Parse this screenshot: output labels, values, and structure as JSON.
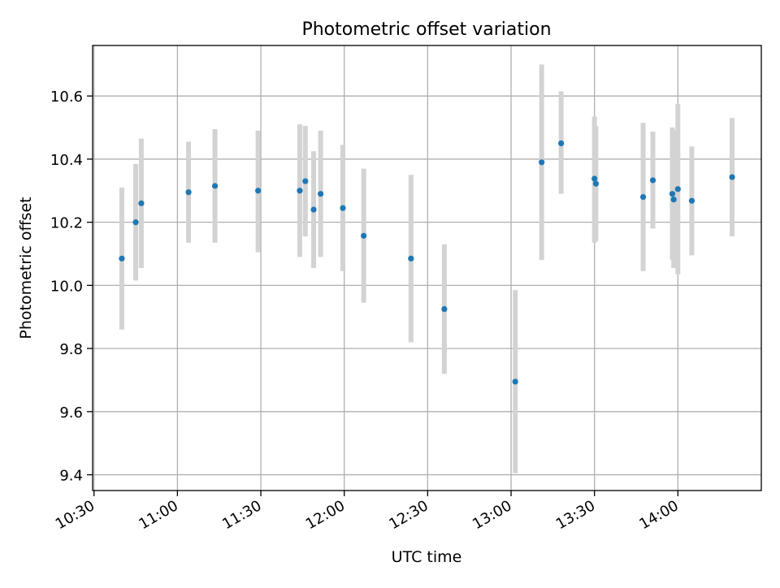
{
  "chart_data": {
    "type": "scatter",
    "title": "Photometric offset variation",
    "xlabel": "UTC time",
    "ylabel": "Photometric offset",
    "x_ticks": [
      "10:30",
      "11:00",
      "11:30",
      "12:00",
      "12:30",
      "13:00",
      "13:30",
      "14:00"
    ],
    "y_ticks": [
      "9.4",
      "9.6",
      "9.8",
      "10.0",
      "10.2",
      "10.4",
      "10.6"
    ],
    "xlim": [
      "10:29:30",
      "14:30:00"
    ],
    "ylim": [
      9.35,
      10.76
    ],
    "grid": true,
    "colors": {
      "point": "#1f77b4",
      "errorbar": "#d3d3d3",
      "grid": "#b0b0b0"
    },
    "points": [
      {
        "x": "10:40:00",
        "y": 10.085,
        "lo": 9.86,
        "hi": 10.31
      },
      {
        "x": "10:45:00",
        "y": 10.2,
        "lo": 10.015,
        "hi": 10.385
      },
      {
        "x": "10:47:00",
        "y": 10.26,
        "lo": 10.055,
        "hi": 10.465
      },
      {
        "x": "11:04:00",
        "y": 10.295,
        "lo": 10.135,
        "hi": 10.455
      },
      {
        "x": "11:13:30",
        "y": 10.315,
        "lo": 10.135,
        "hi": 10.495
      },
      {
        "x": "11:29:00",
        "y": 10.3,
        "lo": 10.105,
        "hi": 10.49
      },
      {
        "x": "11:44:00",
        "y": 10.3,
        "lo": 10.09,
        "hi": 10.51
      },
      {
        "x": "11:46:00",
        "y": 10.33,
        "lo": 10.155,
        "hi": 10.505
      },
      {
        "x": "11:49:00",
        "y": 10.24,
        "lo": 10.055,
        "hi": 10.425
      },
      {
        "x": "11:51:30",
        "y": 10.29,
        "lo": 10.09,
        "hi": 10.49
      },
      {
        "x": "11:59:30",
        "y": 10.245,
        "lo": 10.045,
        "hi": 10.445
      },
      {
        "x": "12:07:00",
        "y": 10.157,
        "lo": 9.945,
        "hi": 10.37
      },
      {
        "x": "12:24:00",
        "y": 10.085,
        "lo": 9.82,
        "hi": 10.35
      },
      {
        "x": "12:36:00",
        "y": 9.925,
        "lo": 9.72,
        "hi": 10.13
      },
      {
        "x": "13:01:30",
        "y": 9.695,
        "lo": 9.405,
        "hi": 9.985
      },
      {
        "x": "13:11:00",
        "y": 10.39,
        "lo": 10.08,
        "hi": 10.7
      },
      {
        "x": "13:18:00",
        "y": 10.45,
        "lo": 10.29,
        "hi": 10.615
      },
      {
        "x": "13:30:00",
        "y": 10.338,
        "lo": 10.135,
        "hi": 10.535
      },
      {
        "x": "13:30:30",
        "y": 10.322,
        "lo": 10.14,
        "hi": 10.505
      },
      {
        "x": "13:47:30",
        "y": 10.28,
        "lo": 10.045,
        "hi": 10.515
      },
      {
        "x": "13:51:00",
        "y": 10.333,
        "lo": 10.18,
        "hi": 10.487
      },
      {
        "x": "13:58:00",
        "y": 10.29,
        "lo": 10.08,
        "hi": 10.5
      },
      {
        "x": "13:58:30",
        "y": 10.272,
        "lo": 10.055,
        "hi": 10.49
      },
      {
        "x": "14:00:00",
        "y": 10.305,
        "lo": 10.035,
        "hi": 10.575
      },
      {
        "x": "14:05:00",
        "y": 10.268,
        "lo": 10.095,
        "hi": 10.44
      },
      {
        "x": "14:19:30",
        "y": 10.343,
        "lo": 10.155,
        "hi": 10.53
      }
    ]
  }
}
